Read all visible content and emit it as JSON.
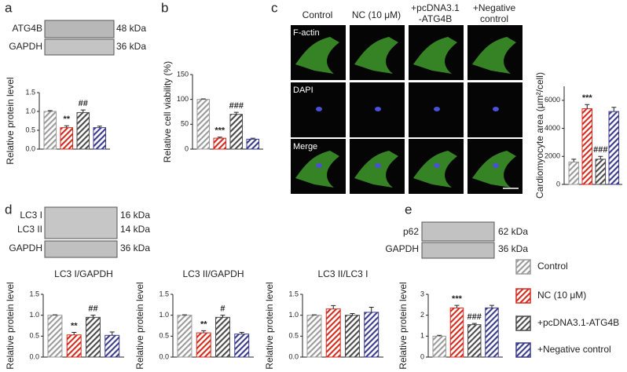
{
  "panels": [
    "a",
    "b",
    "c",
    "d",
    "e"
  ],
  "blot_a": [
    {
      "label": "ATG4B",
      "size": "48 kDa"
    },
    {
      "label": "GAPDH",
      "size": "36 kDa"
    }
  ],
  "blot_d": [
    {
      "label": "LC3 I",
      "size": "16 kDa"
    },
    {
      "label": "LC3 II",
      "size": "14 kDa"
    },
    {
      "label": "GAPDH",
      "size": "36 kDa"
    }
  ],
  "blot_e": [
    {
      "label": "p62",
      "size": "62 kDa"
    },
    {
      "label": "GAPDH",
      "size": "36 kDa"
    }
  ],
  "microscopy": {
    "columns": [
      [
        "Control"
      ],
      [
        "NC (10 μM)"
      ],
      [
        "+pcDNA3.1",
        "-ATG4B"
      ],
      [
        "+Negative",
        "control"
      ]
    ],
    "rows": [
      "F-actin",
      "DAPI",
      "Merge"
    ]
  },
  "legend": [
    {
      "name": "Control",
      "color": "#9a9a9a"
    },
    {
      "name": "NC (10 μM)",
      "color": "#d42a1e"
    },
    {
      "name": "+pcDNA3.1-ATG4B",
      "color": "#4a4a4a"
    },
    {
      "name": "+Negative control",
      "color": "#3a3a8c"
    }
  ],
  "chart_data": [
    {
      "type": "bar",
      "ylabel": "Relative protein level",
      "values": [
        1.0,
        0.57,
        0.97,
        0.57
      ],
      "errors": [
        0.02,
        0.05,
        0.07,
        0.04
      ],
      "annotations": [
        null,
        "**",
        "##",
        null
      ],
      "ylim": [
        0,
        1.5
      ],
      "yticks": [
        {
          "value": 0,
          "label": "0.0"
        },
        {
          "value": 0.5,
          "label": "0.5"
        },
        {
          "value": 1,
          "label": "1.0"
        },
        {
          "value": 1.5,
          "label": "1.5"
        }
      ]
    },
    {
      "type": "bar",
      "ylabel": "Relative cell viability (%)",
      "values": [
        100,
        22,
        70,
        20
      ],
      "errors": [
        1,
        2,
        4,
        2
      ],
      "annotations": [
        null,
        "***",
        "###",
        null
      ],
      "ylim": [
        0,
        150
      ],
      "yticks": [
        0,
        50,
        100,
        150
      ]
    },
    {
      "type": "bar",
      "ylabel": "Cardiomyocyte area (μm²/cell)",
      "values": [
        1600,
        5400,
        1800,
        5200
      ],
      "errors": [
        200,
        300,
        200,
        300
      ],
      "annotations": [
        null,
        "***",
        "###",
        null
      ],
      "ylim": [
        0,
        7000
      ],
      "yticks": [
        0,
        2000,
        4000,
        6000
      ]
    },
    {
      "type": "bar",
      "title": "LC3 I/GAPDH",
      "ylabel": "Relative protein level",
      "values": [
        1.0,
        0.53,
        0.95,
        0.52
      ],
      "errors": [
        0.01,
        0.06,
        0.05,
        0.08
      ],
      "annotations": [
        null,
        "**",
        "##",
        null
      ],
      "ylim": [
        0,
        1.5
      ],
      "yticks": [
        {
          "value": 0,
          "label": "0.0"
        },
        {
          "value": 0.5,
          "label": "0.5"
        },
        {
          "value": 1,
          "label": "1.0"
        },
        {
          "value": 1.5,
          "label": "1.5"
        }
      ]
    },
    {
      "type": "bar",
      "title": "LC3 II/GAPDH",
      "ylabel": "Relative protein level",
      "values": [
        1.0,
        0.58,
        0.95,
        0.55
      ],
      "errors": [
        0.01,
        0.05,
        0.05,
        0.04
      ],
      "annotations": [
        null,
        "**",
        "#",
        null
      ],
      "ylim": [
        0,
        1.5
      ],
      "yticks": [
        {
          "value": 0,
          "label": "0.0"
        },
        {
          "value": 0.5,
          "label": "0.5"
        },
        {
          "value": 1,
          "label": "1.0"
        },
        {
          "value": 1.5,
          "label": "1.5"
        }
      ]
    },
    {
      "type": "bar",
      "title": "LC3 II/LC3 I",
      "ylabel": "Relative protein level",
      "values": [
        1.0,
        1.15,
        1.0,
        1.07
      ],
      "errors": [
        0.01,
        0.08,
        0.04,
        0.12
      ],
      "annotations": [
        null,
        null,
        null,
        null
      ],
      "ylim": [
        0,
        1.5
      ],
      "yticks": [
        {
          "value": 0,
          "label": "0.0"
        },
        {
          "value": 0.5,
          "label": "0.5"
        },
        {
          "value": 1,
          "label": "1.0"
        },
        {
          "value": 1.5,
          "label": "1.5"
        }
      ]
    },
    {
      "type": "bar",
      "ylabel": "Relative protein level",
      "values": [
        1.0,
        2.35,
        1.55,
        2.35
      ],
      "errors": [
        0.04,
        0.12,
        0.06,
        0.12
      ],
      "annotations": [
        null,
        "***",
        "###",
        null
      ],
      "ylim": [
        0,
        3
      ],
      "yticks": [
        0,
        1,
        2,
        3
      ]
    }
  ]
}
